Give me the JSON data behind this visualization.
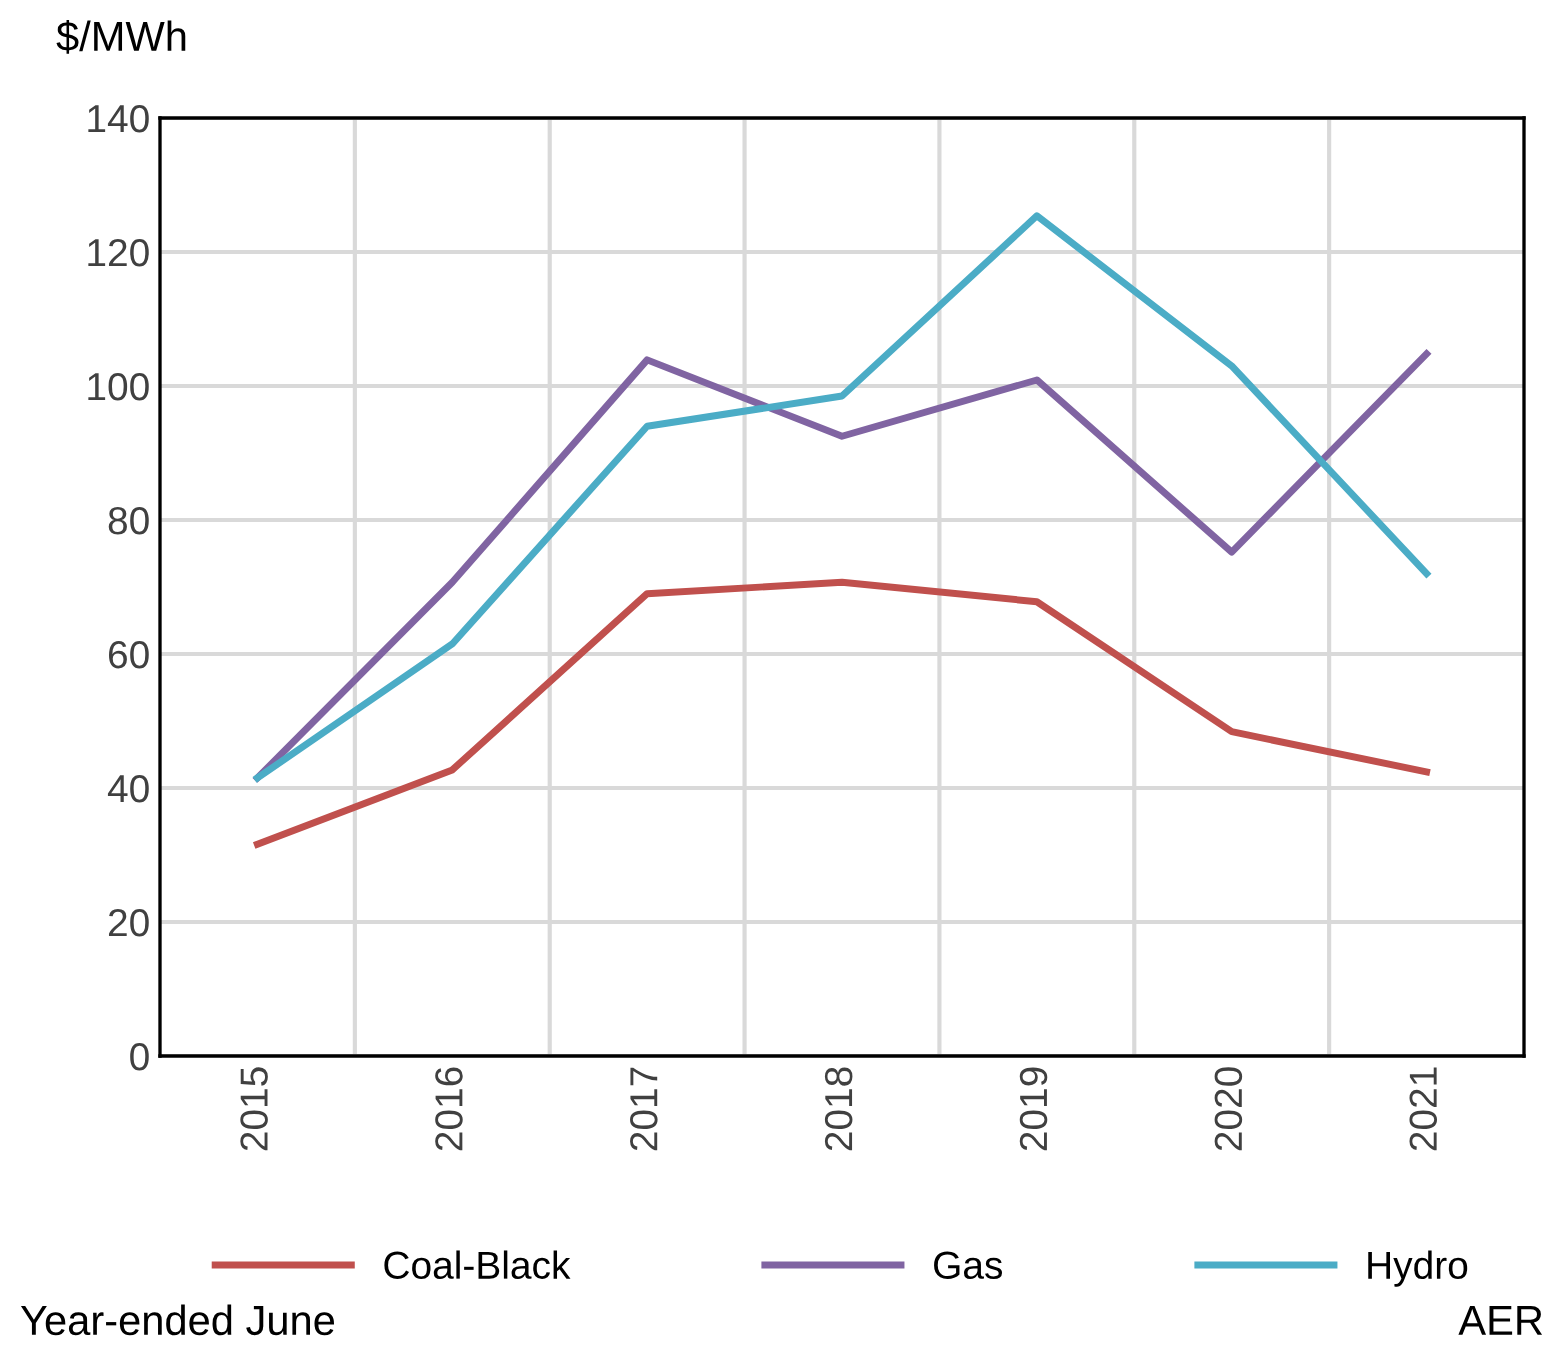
{
  "chart_data": {
    "type": "line",
    "ylabel": "$/MWh",
    "categories": [
      "2015",
      "2016",
      "2017",
      "2018",
      "2019",
      "2020",
      "2021"
    ],
    "series": [
      {
        "name": "Coal-Black",
        "color": "#c0504d",
        "values": [
          31.6,
          42.7,
          69,
          70.7,
          67.8,
          48.4,
          42.4
        ]
      },
      {
        "name": "Gas",
        "color": "#8064a2",
        "values": [
          41.5,
          70.7,
          103.9,
          92.5,
          100.9,
          75.2,
          104.8
        ]
      },
      {
        "name": "Hydro",
        "color": "#4bacc6",
        "values": [
          41.5,
          61.5,
          94,
          98.5,
          125.4,
          103,
          72
        ]
      }
    ],
    "ylim": [
      0,
      140
    ],
    "yticks": [
      0,
      20,
      40,
      60,
      80,
      100,
      120,
      140
    ],
    "grid": true,
    "legend": "bottom",
    "marker": "none",
    "line_style": "solid",
    "annotations": [
      "Year-ended June",
      "AER"
    ]
  }
}
